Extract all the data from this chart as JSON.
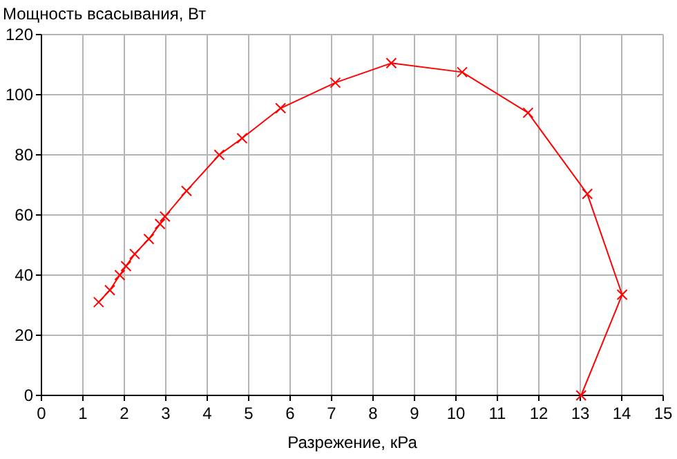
{
  "chart_data": {
    "type": "line",
    "ylabel": "Мощность всасывания, Вт",
    "xlabel": "Разрежение, кРа",
    "xlim": [
      0,
      15
    ],
    "xticks": [
      0,
      1,
      2,
      3,
      4,
      5,
      6,
      7,
      8,
      9,
      10,
      11,
      12,
      13,
      14,
      15
    ],
    "ylim": [
      0,
      120
    ],
    "yticks": [
      0,
      20,
      40,
      60,
      80,
      100,
      120
    ],
    "grid": true,
    "marker": "cross",
    "line_style": "solid",
    "series": [
      {
        "color": "#ff0000",
        "x": [
          1.38,
          1.65,
          1.89,
          2.04,
          2.25,
          2.59,
          2.86,
          2.98,
          3.5,
          4.29,
          4.84,
          5.77,
          7.09,
          8.44,
          10.15,
          11.74,
          13.17,
          14.01,
          13.02
        ],
        "values": [
          31,
          35,
          40,
          43,
          47,
          52,
          57,
          59.5,
          68,
          80,
          85.5,
          95.5,
          104,
          110.5,
          107.5,
          94,
          67,
          33.5,
          0
        ]
      }
    ]
  }
}
